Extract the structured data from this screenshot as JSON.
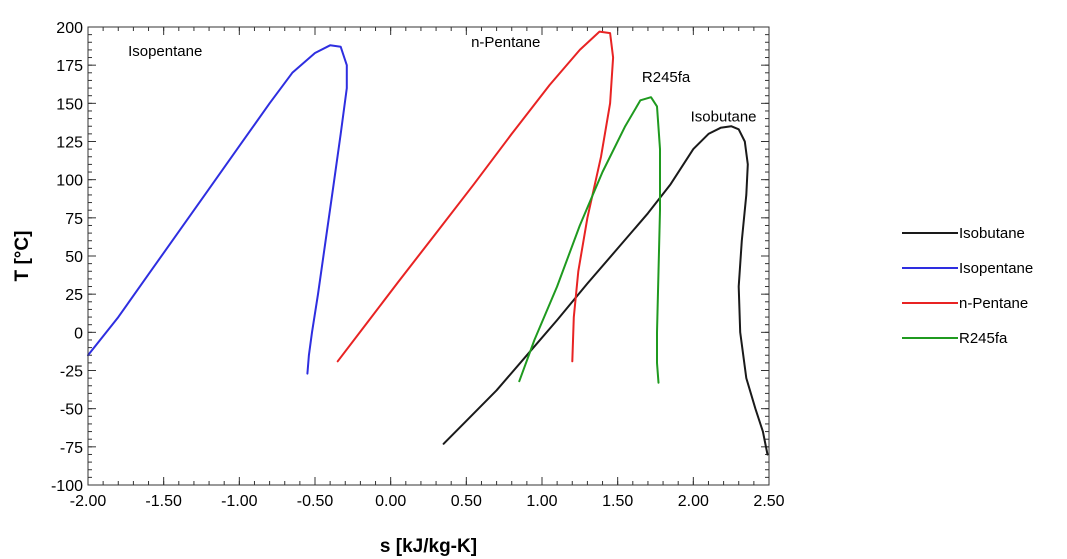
{
  "chart_data": {
    "type": "line",
    "title": "",
    "xlabel": "s [kJ/kg-K]",
    "ylabel": "T [°C]",
    "xlim": [
      -2.0,
      2.5
    ],
    "ylim": [
      -100,
      200
    ],
    "xticks": [
      -2.0,
      -1.5,
      -1.0,
      -0.5,
      0.0,
      0.5,
      1.0,
      1.5,
      2.0,
      2.5
    ],
    "xtick_labels": [
      "-2.00",
      "-1.50",
      "-1.00",
      "-0.50",
      "0.00",
      "0.50",
      "1.00",
      "1.50",
      "2.00",
      "2.50"
    ],
    "yticks": [
      -100,
      -75,
      -50,
      -25,
      0,
      25,
      50,
      75,
      100,
      125,
      150,
      175,
      200
    ],
    "yticks_minor_step": 5,
    "xticks_minor_step": 0.1,
    "grid": false,
    "legend_position": "right",
    "series": [
      {
        "name": "Isobutane",
        "color": "#1a1a1a",
        "x": [
          0.35,
          0.5,
          0.7,
          0.9,
          1.1,
          1.3,
          1.5,
          1.7,
          1.85,
          2.0,
          2.1,
          2.18,
          2.25,
          2.3,
          2.34,
          2.36,
          2.35,
          2.32,
          2.3,
          2.31,
          2.35,
          2.41,
          2.46,
          2.49
        ],
        "y": [
          -73,
          -58,
          -38,
          -15,
          8,
          32,
          55,
          78,
          97,
          120,
          130,
          134,
          135,
          133,
          125,
          110,
          90,
          60,
          30,
          0,
          -30,
          -50,
          -65,
          -80
        ]
      },
      {
        "name": "Isopentane",
        "color": "#2e2ee0",
        "x": [
          -2.0,
          -1.8,
          -1.6,
          -1.4,
          -1.2,
          -1.0,
          -0.8,
          -0.65,
          -0.5,
          -0.4,
          -0.33,
          -0.29,
          -0.29,
          -0.33,
          -0.38,
          -0.43,
          -0.48,
          -0.52,
          -0.54,
          -0.55
        ],
        "y": [
          -15,
          10,
          38,
          66,
          94,
          122,
          150,
          170,
          183,
          188,
          187,
          175,
          160,
          130,
          95,
          60,
          25,
          0,
          -15,
          -27
        ]
      },
      {
        "name": "n-Pentane",
        "color": "#e82323",
        "x": [
          -0.35,
          -0.15,
          0.05,
          0.3,
          0.55,
          0.8,
          1.05,
          1.25,
          1.38,
          1.45,
          1.47,
          1.45,
          1.39,
          1.3,
          1.24,
          1.21,
          1.2
        ],
        "y": [
          -19,
          7,
          33,
          65,
          97,
          130,
          162,
          185,
          197,
          196,
          180,
          150,
          115,
          75,
          40,
          10,
          -19
        ]
      },
      {
        "name": "R245fa",
        "color": "#1f9a1f",
        "x": [
          0.85,
          0.95,
          1.1,
          1.25,
          1.4,
          1.55,
          1.65,
          1.72,
          1.76,
          1.78,
          1.78,
          1.77,
          1.76,
          1.76,
          1.77
        ],
        "y": [
          -32,
          -5,
          30,
          70,
          105,
          135,
          152,
          154,
          148,
          120,
          80,
          40,
          0,
          -20,
          -33
        ]
      }
    ],
    "annotations": [
      {
        "text": "Isopentane",
        "x": -1.49,
        "y": 181
      },
      {
        "text": "n-Pentane",
        "x": 0.76,
        "y": 187
      },
      {
        "text": "R245fa",
        "x": 1.82,
        "y": 164
      },
      {
        "text": "Isobutane",
        "x": 2.2,
        "y": 138
      }
    ]
  }
}
